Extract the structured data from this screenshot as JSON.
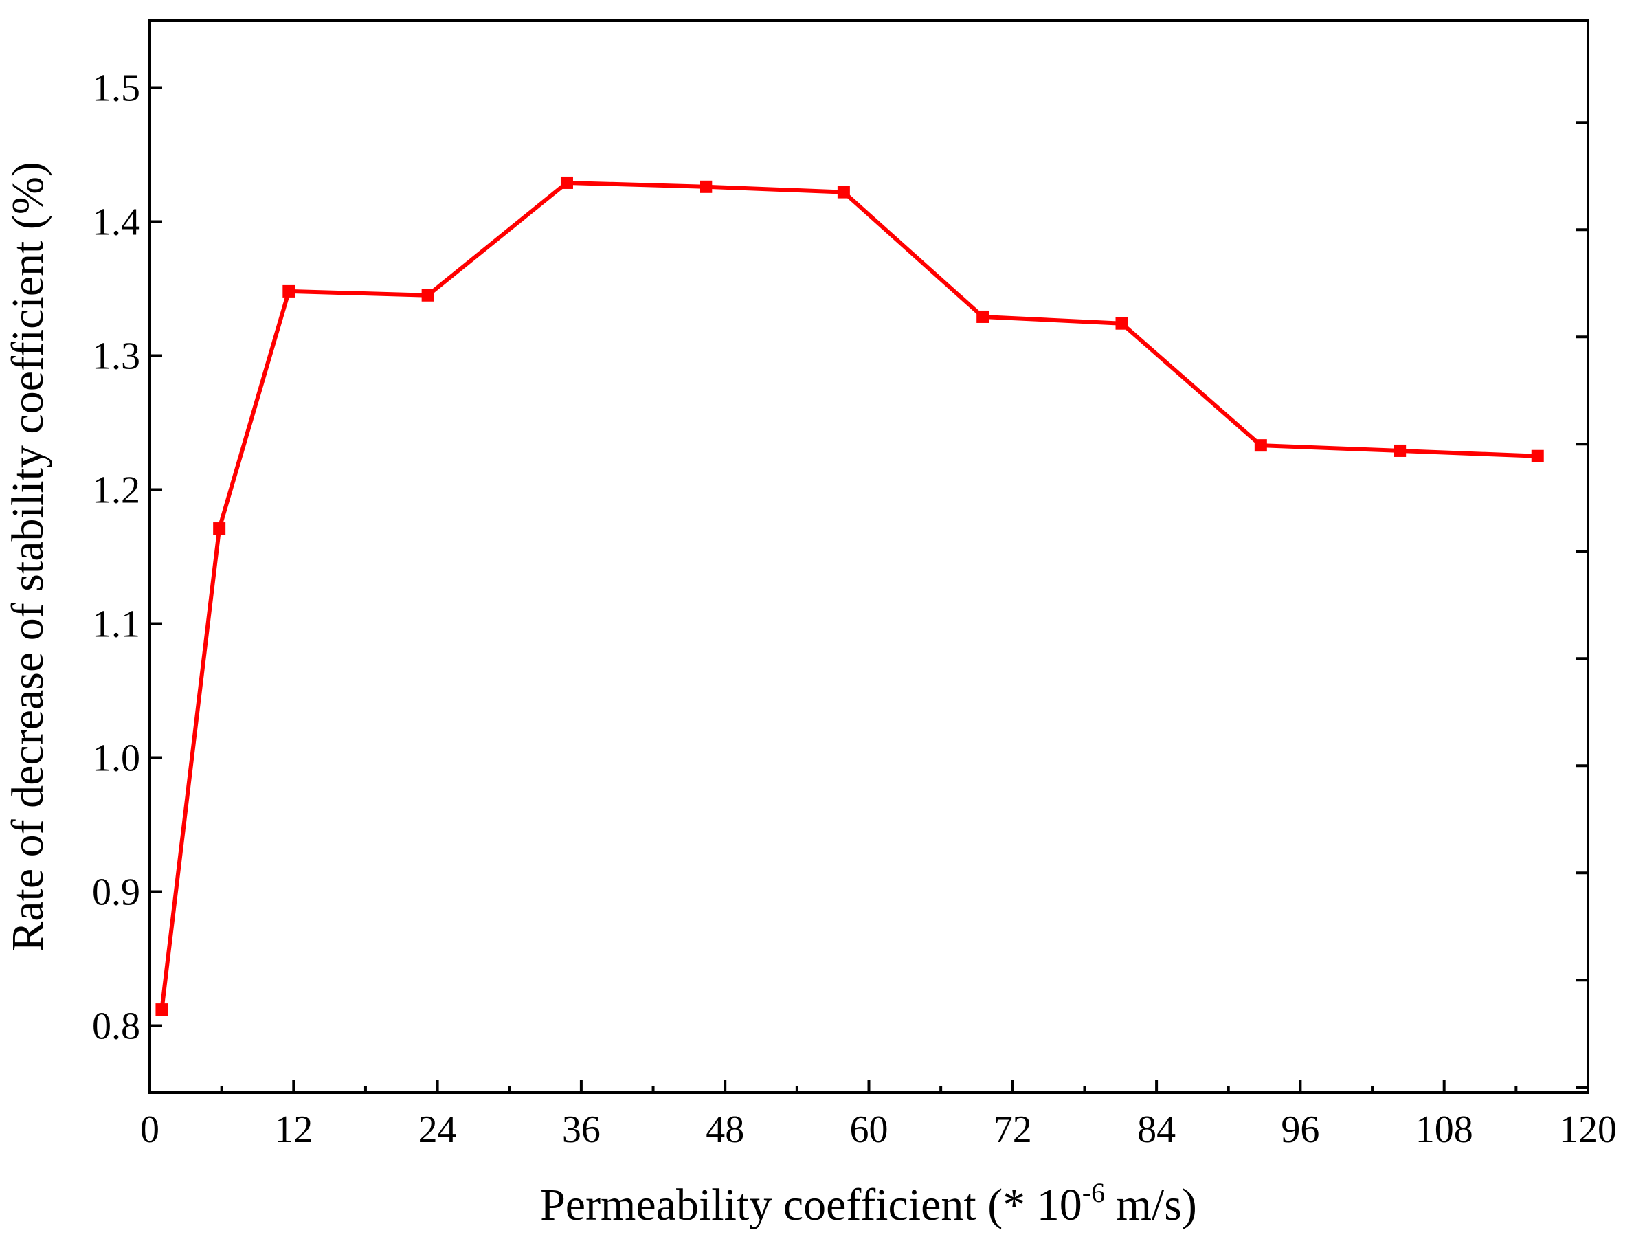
{
  "chart_data": {
    "type": "line",
    "title": "",
    "xlabel_main": "Permeability coefficient (* 10",
    "xlabel_sup": "-6",
    "xlabel_tail": " m/s)",
    "ylabel": "Rate of decrease of  stability coefficient (%)",
    "xlim": [
      0,
      120
    ],
    "ylim": [
      0.75,
      1.55
    ],
    "xticks": [
      0,
      12,
      24,
      36,
      48,
      60,
      72,
      84,
      96,
      108,
      120
    ],
    "yticks": [
      0.8,
      0.9,
      1.0,
      1.1,
      1.2,
      1.3,
      1.4,
      1.5
    ],
    "ytick_labels": [
      "0.8",
      "0.9",
      "1.0",
      "1.1",
      "1.2",
      "1.3",
      "1.4",
      "1.5"
    ],
    "grid": false,
    "series": [
      {
        "color": "#ff0000",
        "marker": "square",
        "x": [
          1,
          5.8,
          11.6,
          23.2,
          34.8,
          46.4,
          57.9,
          69.5,
          81.1,
          92.7,
          104.3,
          115.8
        ],
        "y": [
          0.812,
          1.171,
          1.348,
          1.345,
          1.429,
          1.426,
          1.422,
          1.329,
          1.324,
          1.233,
          1.229,
          1.225
        ]
      }
    ]
  }
}
